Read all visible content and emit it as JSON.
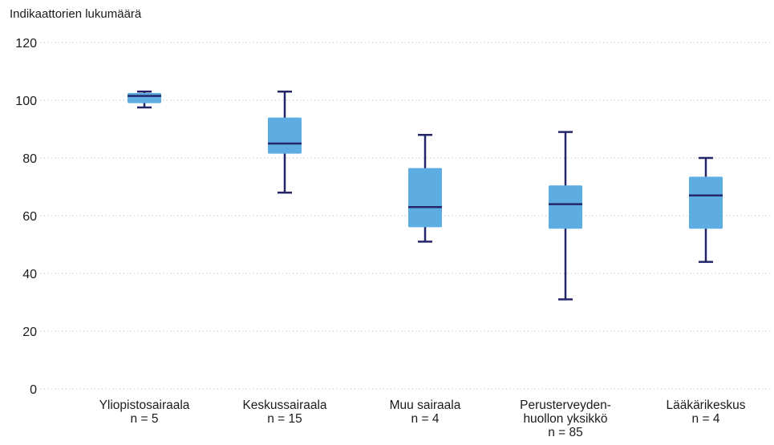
{
  "chart_data": {
    "type": "box",
    "ylabel": "Indikaattorien lukumäärä",
    "ylim": [
      0,
      120
    ],
    "yticks": [
      0,
      20,
      40,
      60,
      80,
      100,
      120
    ],
    "grid": true,
    "colors": {
      "box_fill": "#5dade2",
      "whisker": "#232668",
      "grid": "#c8c8c8"
    },
    "categories": [
      {
        "lines": [
          "Yliopistosairaala",
          "n = 5"
        ],
        "min": 97.5,
        "q1": 99,
        "median": 101.5,
        "q3": 102.5,
        "max": 103
      },
      {
        "lines": [
          "Keskussairaala",
          "n = 15"
        ],
        "min": 68,
        "q1": 81.5,
        "median": 85,
        "q3": 94,
        "max": 103
      },
      {
        "lines": [
          "Muu sairaala",
          "n = 4"
        ],
        "min": 51,
        "q1": 56,
        "median": 63,
        "q3": 76.5,
        "max": 88
      },
      {
        "lines": [
          "Perusterveyden-",
          "huollon yksikkö",
          "n = 85"
        ],
        "min": 31,
        "q1": 55.5,
        "median": 64,
        "q3": 70.5,
        "max": 89
      },
      {
        "lines": [
          "Lääkärikeskus",
          "n = 4"
        ],
        "min": 44,
        "q1": 55.5,
        "median": 67,
        "q3": 73.5,
        "max": 80
      }
    ]
  }
}
